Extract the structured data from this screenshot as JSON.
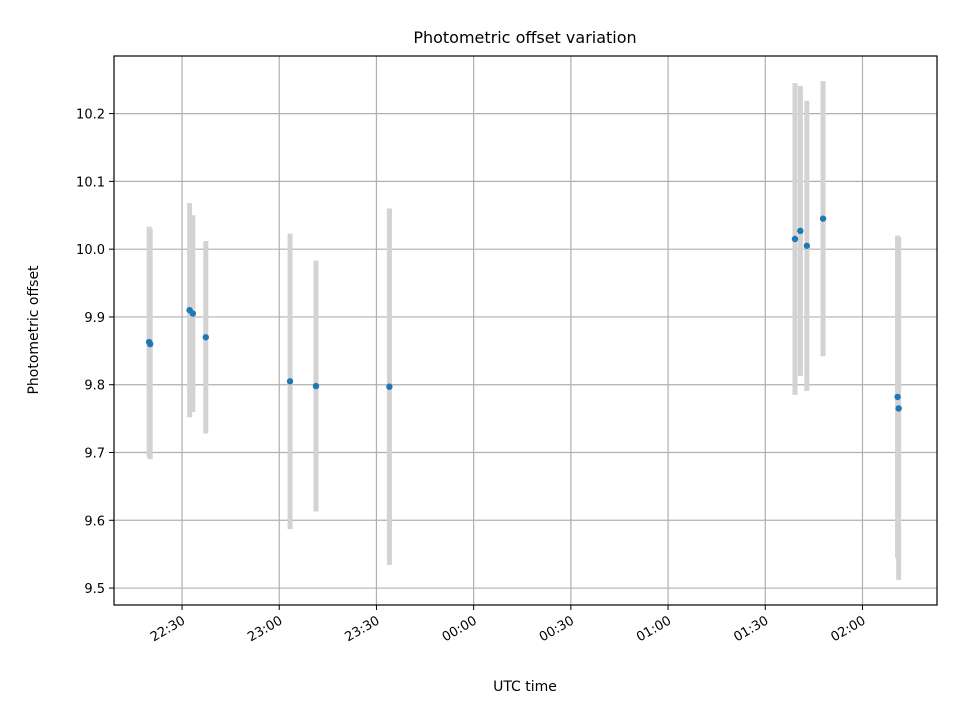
{
  "chart_data": {
    "type": "scatter",
    "title": "Photometric offset variation",
    "xlabel": "UTC time",
    "ylabel": "Photometric offset",
    "x_unit": "time (HH:MM)",
    "xlim": [
      "22:09",
      "02:23"
    ],
    "ylim": [
      9.475,
      10.285
    ],
    "xticks": [
      "22:30",
      "23:00",
      "23:30",
      "00:00",
      "00:30",
      "01:00",
      "01:30",
      "02:00"
    ],
    "yticks": [
      9.5,
      9.6,
      9.7,
      9.8,
      9.9,
      10.0,
      10.1,
      10.2
    ],
    "grid": true,
    "colors": {
      "points": "#1f77b4",
      "errorbars": "#d3d3d3",
      "grid": "#b0b0b0"
    },
    "points": [
      {
        "time": "22:19:50",
        "y": 9.863,
        "err": 0.17
      },
      {
        "time": "22:20:10",
        "y": 9.86,
        "err": 0.17
      },
      {
        "time": "22:32:20",
        "y": 9.91,
        "err": 0.158
      },
      {
        "time": "22:33:20",
        "y": 9.905,
        "err": 0.145
      },
      {
        "time": "22:37:20",
        "y": 9.87,
        "err": 0.142
      },
      {
        "time": "23:03:20",
        "y": 9.805,
        "err": 0.218
      },
      {
        "time": "23:11:20",
        "y": 9.798,
        "err": 0.185
      },
      {
        "time": "23:34:00",
        "y": 9.797,
        "err": 0.263
      },
      {
        "time": "01:39:10",
        "y": 10.015,
        "err": 0.23
      },
      {
        "time": "01:40:50",
        "y": 10.027,
        "err": 0.214
      },
      {
        "time": "01:42:50",
        "y": 10.005,
        "err": 0.214
      },
      {
        "time": "01:47:50",
        "y": 10.045,
        "err": 0.203
      },
      {
        "time": "02:10:50",
        "y": 9.782,
        "err": 0.238
      },
      {
        "time": "02:11:10",
        "y": 9.765,
        "err": 0.253
      }
    ]
  }
}
